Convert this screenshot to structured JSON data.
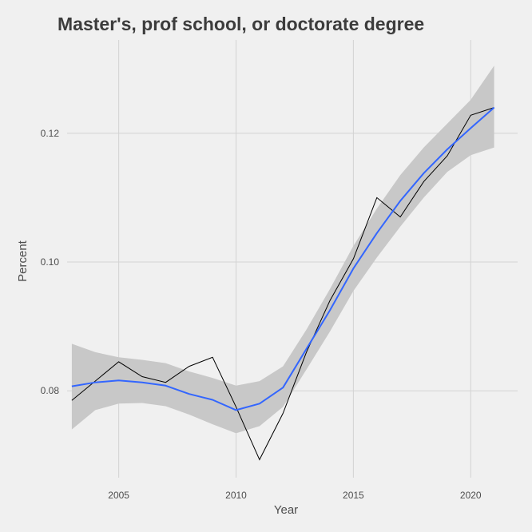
{
  "chart_data": {
    "type": "line",
    "title": "Master's, prof school, or doctorate degree",
    "xlabel": "Year",
    "ylabel": "Percent",
    "xlim": [
      2002.8,
      2022.0
    ],
    "ylim": [
      0.0665,
      0.1345
    ],
    "x_ticks": [
      2005,
      2010,
      2015,
      2020
    ],
    "y_ticks": [
      0.08,
      0.1,
      0.12
    ],
    "y_tick_labels": [
      "0.08",
      "0.10",
      "0.12"
    ],
    "grid": true,
    "series": [
      {
        "kind": "observed",
        "color": "#000000",
        "points": [
          [
            2003,
            0.0785
          ],
          [
            2005,
            0.0845
          ],
          [
            2006,
            0.0822
          ],
          [
            2007,
            0.0813
          ],
          [
            2008,
            0.0838
          ],
          [
            2009,
            0.0852
          ],
          [
            2010,
            0.0775
          ],
          [
            2011,
            0.0693
          ],
          [
            2012,
            0.0765
          ],
          [
            2013,
            0.086
          ],
          [
            2014,
            0.094
          ],
          [
            2015,
            0.1005
          ],
          [
            2016,
            0.11
          ],
          [
            2017,
            0.107
          ],
          [
            2018,
            0.1125
          ],
          [
            2019,
            0.1165
          ],
          [
            2020,
            0.1228
          ],
          [
            2021,
            0.124
          ]
        ]
      },
      {
        "kind": "smooth",
        "color": "#3366ff",
        "band_color": "#c8c8c8",
        "points": [
          [
            2003,
            0.0807
          ],
          [
            2004,
            0.0813
          ],
          [
            2005,
            0.0816
          ],
          [
            2006,
            0.0813
          ],
          [
            2007,
            0.0808
          ],
          [
            2008,
            0.0795
          ],
          [
            2009,
            0.0786
          ],
          [
            2010,
            0.077
          ],
          [
            2011,
            0.078
          ],
          [
            2012,
            0.0805
          ],
          [
            2013,
            0.0865
          ],
          [
            2014,
            0.0925
          ],
          [
            2015,
            0.099
          ],
          [
            2016,
            0.1045
          ],
          [
            2017,
            0.1095
          ],
          [
            2018,
            0.1138
          ],
          [
            2019,
            0.1175
          ],
          [
            2020,
            0.1208
          ],
          [
            2021,
            0.124
          ]
        ],
        "lower": [
          [
            2003,
            0.074
          ],
          [
            2004,
            0.077
          ],
          [
            2005,
            0.078
          ],
          [
            2006,
            0.0781
          ],
          [
            2007,
            0.0776
          ],
          [
            2008,
            0.0763
          ],
          [
            2009,
            0.0748
          ],
          [
            2010,
            0.0734
          ],
          [
            2011,
            0.0745
          ],
          [
            2012,
            0.0775
          ],
          [
            2013,
            0.0833
          ],
          [
            2014,
            0.0892
          ],
          [
            2015,
            0.0955
          ],
          [
            2016,
            0.1007
          ],
          [
            2017,
            0.1055
          ],
          [
            2018,
            0.11
          ],
          [
            2019,
            0.114
          ],
          [
            2020,
            0.1166
          ],
          [
            2021,
            0.1178
          ]
        ],
        "upper": [
          [
            2003,
            0.0873
          ],
          [
            2004,
            0.086
          ],
          [
            2005,
            0.0852
          ],
          [
            2006,
            0.0848
          ],
          [
            2007,
            0.0843
          ],
          [
            2008,
            0.083
          ],
          [
            2009,
            0.082
          ],
          [
            2010,
            0.0808
          ],
          [
            2011,
            0.0815
          ],
          [
            2012,
            0.0838
          ],
          [
            2013,
            0.0895
          ],
          [
            2014,
            0.0958
          ],
          [
            2015,
            0.1025
          ],
          [
            2016,
            0.1083
          ],
          [
            2017,
            0.1135
          ],
          [
            2018,
            0.1178
          ],
          [
            2019,
            0.1215
          ],
          [
            2020,
            0.1252
          ],
          [
            2021,
            0.1305
          ]
        ]
      }
    ]
  }
}
